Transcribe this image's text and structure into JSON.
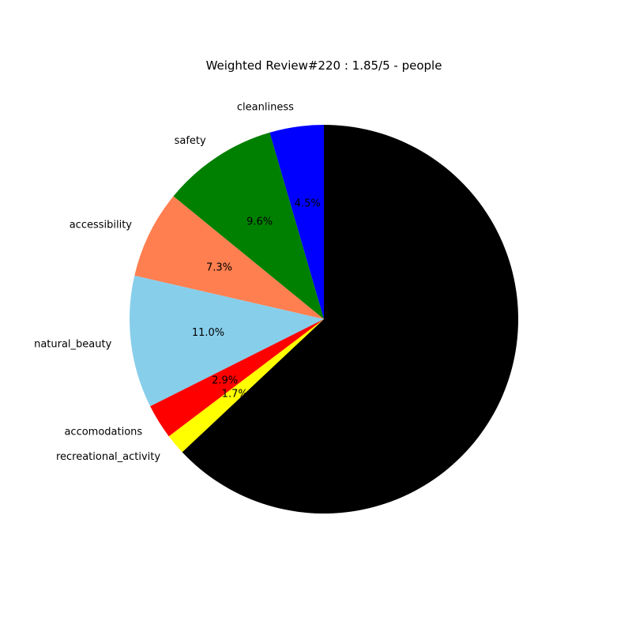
{
  "chart_data": {
    "type": "pie",
    "title": "Weighted Review#220 : 1.85/5 - people",
    "start_angle_deg": 90,
    "direction": "counterclockwise",
    "slices": [
      {
        "label": "cleanliness",
        "value": 4.5,
        "pct_label": "4.5%",
        "color": "#0000ff"
      },
      {
        "label": "safety",
        "value": 9.6,
        "pct_label": "9.6%",
        "color": "#008000"
      },
      {
        "label": "accessibility",
        "value": 7.3,
        "pct_label": "7.3%",
        "color": "#ff7f50"
      },
      {
        "label": "natural_beauty",
        "value": 11.0,
        "pct_label": "11.0%",
        "color": "#87ceeb"
      },
      {
        "label": "accomodations",
        "value": 2.9,
        "pct_label": "2.9%",
        "color": "#ff0000"
      },
      {
        "label": "recreational_activity",
        "value": 1.7,
        "pct_label": "1.7%",
        "color": "#ffff00"
      },
      {
        "label": "",
        "value": 63.0,
        "pct_label": "",
        "color": "#000000"
      }
    ]
  }
}
